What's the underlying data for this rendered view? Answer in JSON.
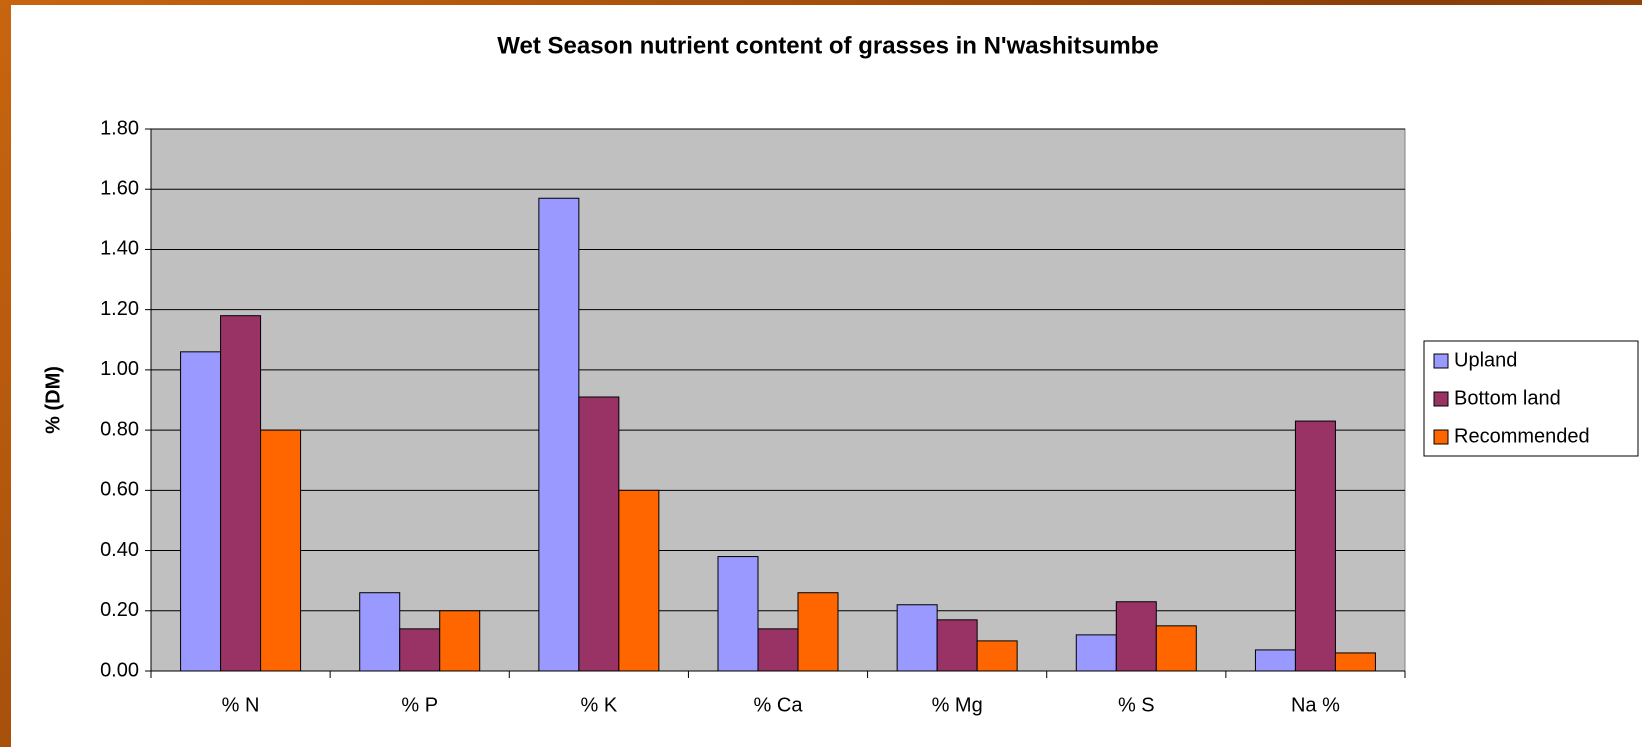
{
  "chart_data": {
    "type": "bar",
    "title": "Wet Season nutrient content of grasses in N'washitsumbe",
    "y_label": "% (DM)",
    "categories": [
      "% N",
      "% P",
      "% K",
      "% Ca",
      "% Mg",
      "% S",
      "Na %"
    ],
    "series": [
      {
        "name": "Upland",
        "color": "#9999ff",
        "values": [
          1.06,
          0.26,
          1.57,
          0.38,
          0.22,
          0.12,
          0.07
        ]
      },
      {
        "name": "Bottom land",
        "color": "#993366",
        "values": [
          1.18,
          0.14,
          0.91,
          0.14,
          0.17,
          0.23,
          0.83
        ]
      },
      {
        "name": "Recommended",
        "color": "#ff6600",
        "values": [
          0.8,
          0.2,
          0.6,
          0.26,
          0.1,
          0.15,
          0.06
        ]
      }
    ],
    "ylim": [
      0,
      1.8
    ],
    "yticks": [
      {
        "value": 0,
        "label": "0.00"
      },
      {
        "value": 0.2,
        "label": "0.20"
      },
      {
        "value": 0.4,
        "label": "0.40"
      },
      {
        "value": 0.6,
        "label": "0.60"
      },
      {
        "value": 0.8,
        "label": "0.80"
      },
      {
        "value": 1.0,
        "label": "1.00"
      },
      {
        "value": 1.2,
        "label": "1.20"
      },
      {
        "value": 1.4,
        "label": "1.40"
      },
      {
        "value": 1.6,
        "label": "1.60"
      },
      {
        "value": 1.8,
        "label": "1.80"
      }
    ],
    "grid": true,
    "legend": "right"
  }
}
